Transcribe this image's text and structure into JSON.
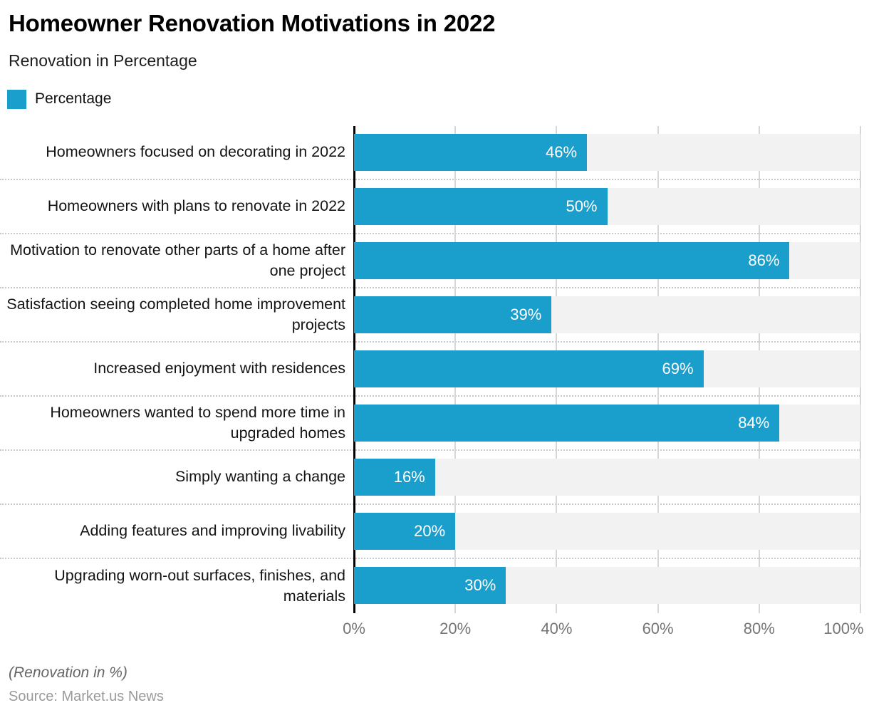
{
  "header": {
    "title": "Homeowner Renovation Motivations in 2022",
    "subtitle": "Renovation in Percentage",
    "legend": {
      "label": "Percentage",
      "color": "#1A9FCD"
    }
  },
  "chart_data": {
    "type": "bar",
    "orientation": "horizontal",
    "title": "Homeowner Renovation Motivations in 2022",
    "subtitle": "Renovation in Percentage",
    "categories": [
      "Homeowners focused on decorating in 2022",
      "Homeowners with plans to renovate in 2022",
      "Motivation to renovate other parts of a home after one project",
      "Satisfaction seeing completed home improvement projects",
      "Increased enjoyment with residences",
      "Homeowners wanted to spend more time in upgraded homes",
      "Simply wanting a change",
      "Adding features and improving livability",
      "Upgrading worn-out surfaces, finishes, and materials"
    ],
    "series": [
      {
        "name": "Percentage",
        "values": [
          46,
          50,
          86,
          39,
          69,
          84,
          16,
          20,
          30
        ]
      }
    ],
    "value_suffix": "%",
    "xlim": [
      0,
      100
    ],
    "x_ticks": [
      "0%",
      "20%",
      "40%",
      "60%",
      "80%",
      "100%"
    ],
    "gridline_positions": [
      20,
      40,
      60,
      80,
      100
    ],
    "legend_position": "top-left",
    "grid": true,
    "colors": {
      "bar": "#1A9FCD",
      "track": "#f2f2f2",
      "gridline": "#d7d7d7",
      "axis_line": "#000000",
      "value_label": "#ffffff",
      "tick_label": "#757575"
    }
  },
  "footer": {
    "note": "(Renovation in %)",
    "source": "Source: Market.us News"
  }
}
